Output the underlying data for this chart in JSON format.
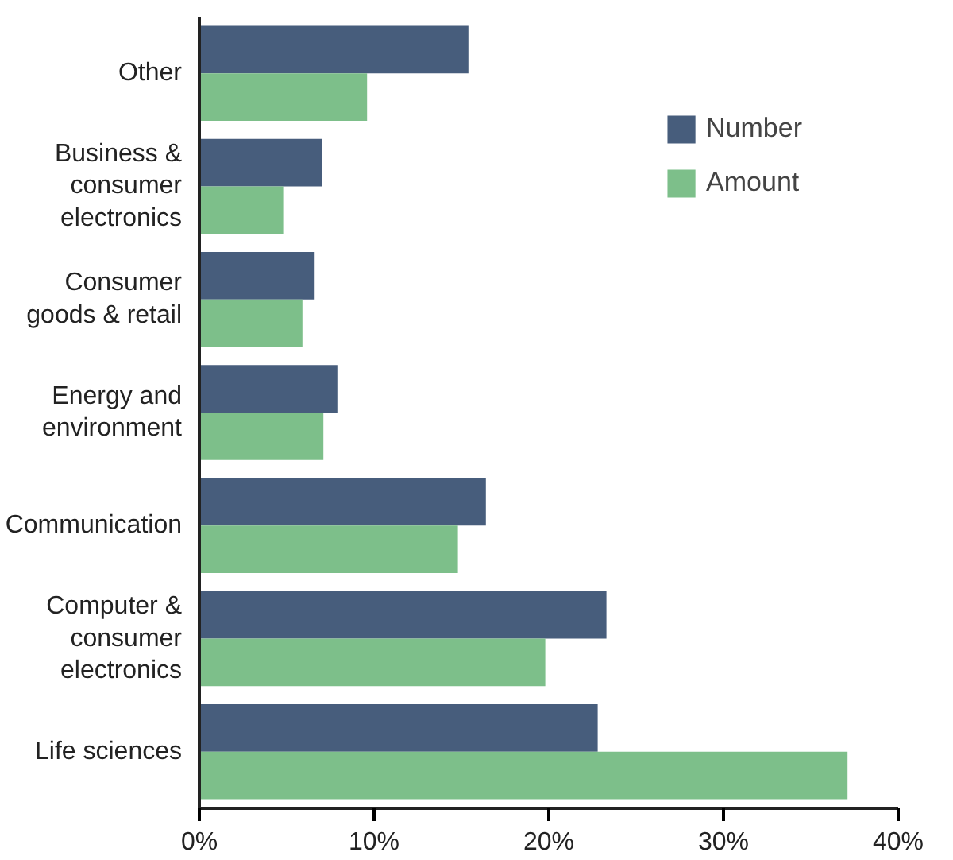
{
  "chart_data": {
    "type": "bar",
    "orientation": "horizontal",
    "categories": [
      "Other",
      "Business &\nconsumer\nelectronics",
      "Consumer\ngoods & retail",
      "Energy and\nenvironment",
      "Communication",
      "Computer &\nconsumer\nelectronics",
      "Life sciences"
    ],
    "series": [
      {
        "name": "Number",
        "color": "#475d7c",
        "values": [
          15.4,
          7.0,
          6.6,
          7.9,
          16.4,
          23.3,
          22.8
        ]
      },
      {
        "name": "Amount",
        "color": "#7dbf8a",
        "values": [
          9.6,
          4.8,
          5.9,
          7.1,
          14.8,
          19.8,
          37.1
        ]
      }
    ],
    "xlim": [
      0,
      40
    ],
    "xticks": [
      {
        "value": 0,
        "label": "0%"
      },
      {
        "value": 10,
        "label": "10%"
      },
      {
        "value": 20,
        "label": "20%"
      },
      {
        "value": 30,
        "label": "30%"
      },
      {
        "value": 40,
        "label": "40%"
      }
    ],
    "legend": "top right",
    "grid": false
  }
}
